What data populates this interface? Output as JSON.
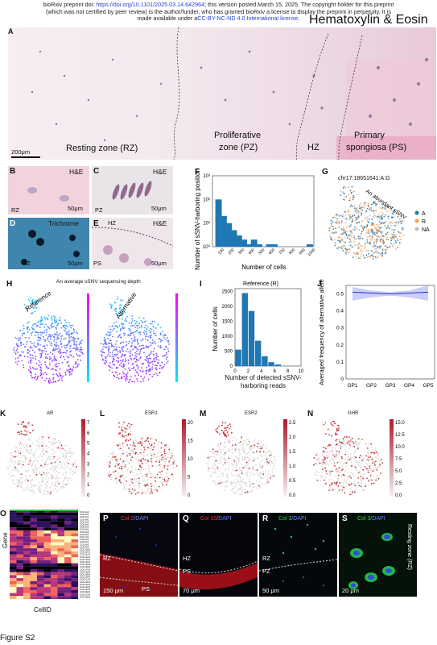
{
  "header": {
    "line1_pre": "bioRxiv preprint doi: ",
    "doi": "https://doi.org/10.1101/2025.03.14.642964",
    "line1_post": "; this version posted March 15, 2025. The copyright holder for this preprint",
    "line2": "(which was not certified by peer review) is the author/funder, who has granted bioRxiv a license to display the preprint in perpetuity. It is",
    "line3_pre": "made available under a",
    "license": "CC-BY-NC-ND 4.0 International license",
    "line3_post": "."
  },
  "panelA": {
    "letter": "A",
    "title": "Hematoxylin & Eosin",
    "scalebar": "200μm",
    "zones": [
      "Resting zone (RZ)",
      "Proliferative",
      "zone (PZ)",
      "HZ",
      "Primary",
      "spongiosa (PS)"
    ]
  },
  "panelB": {
    "letter": "B",
    "stain": "H&E",
    "zone": "RZ",
    "scalebar": "50μm"
  },
  "panelC": {
    "letter": "C",
    "stain": "H&E",
    "zone": "PZ",
    "scalebar": "50μm"
  },
  "panelD": {
    "letter": "D",
    "stain": "Trichrome",
    "zone": "RZ",
    "scalebar": "50μm"
  },
  "panelE": {
    "letter": "E",
    "stain": "H&E",
    "zone_top": "HZ",
    "zone_bottom": "PS",
    "scalebar": "50μm"
  },
  "panelF": {
    "letter": "F"
  },
  "panelG": {
    "letter": "G",
    "title": "chr17:18651641:A:G",
    "annotation": "An abundant sSNV",
    "legend": [
      {
        "label": "A",
        "color": "#1f77b4"
      },
      {
        "label": "R",
        "color": "#ff9f4a"
      },
      {
        "label": "NA",
        "color": "#bfbfbf"
      }
    ]
  },
  "panelH": {
    "letter": "H",
    "title": "An average sSNV sequencing depth",
    "left_label": "Reference",
    "right_label": "Alternative"
  },
  "panelI": {
    "letter": "I"
  },
  "panelJ": {
    "letter": "J"
  },
  "panelK": {
    "letter": "K",
    "gene": "AR",
    "ticks": [
      "7",
      "6",
      "5",
      "4",
      "3",
      "2",
      "1",
      "0"
    ]
  },
  "panelL": {
    "letter": "L",
    "gene": "ESR1",
    "ticks": [
      "20",
      "15",
      "10",
      "5",
      "0"
    ]
  },
  "panelM": {
    "letter": "M",
    "gene": "ESR2",
    "ticks": [
      "2.5",
      "2.0",
      "1.5",
      "1.0",
      "0.5",
      "0.0"
    ]
  },
  "panelN": {
    "letter": "N",
    "gene": "GHR",
    "ticks": [
      "15.0",
      "12.5",
      "10.0",
      "7.5",
      "5.0",
      "2.5",
      "0.0"
    ]
  },
  "panelO": {
    "letter": "O",
    "ylabel": "Gene",
    "xlabel": "CellID",
    "genes": [
      "COL1A2",
      "COL2A1",
      "COL3A1",
      "COL4A1",
      "COL4A2",
      "COL5A1",
      "COL5A2",
      "COL6A1",
      "COL6A2",
      "COL6A3",
      "COL7A1",
      "COL8A1",
      "COL9A1",
      "COL9A2",
      "COL9A3",
      "COL10A1",
      "COL11A1",
      "COL11A2",
      "COL12A1",
      "COL13A1",
      "COL14A1",
      "COL15A1",
      "COL16A1",
      "COL17A1",
      "COL18A1",
      "COL19A1",
      "COL20A1",
      "COL21A1",
      "COL22A1",
      "COL23A1",
      "COL24A1",
      "COL25A1",
      "COL26A1",
      "COL27A1",
      "COL28A1"
    ]
  },
  "panelP": {
    "letter": "P",
    "marker": "Col 2",
    "dapi": "/DAPI",
    "zone_top": "RZ",
    "zone_bottom": "PS",
    "scalebar": "150 μm"
  },
  "panelQ": {
    "letter": "Q",
    "marker": "Col 10",
    "dapi": "/DAPI",
    "zone_top": "HZ",
    "zone_bottom": "PS",
    "scalebar": "70 μm"
  },
  "panelR": {
    "letter": "R",
    "marker": "Col 3",
    "dapi": "/DAPI",
    "zone_top": "RZ",
    "zone_bottom": "PZ",
    "scalebar": "50 μm"
  },
  "panelS": {
    "letter": "S",
    "marker": "Col 3",
    "dapi": "/DAPI",
    "zone": "Resting zone (RZ)",
    "scalebar": "20 μm"
  },
  "figure_label": "Figure S2",
  "chart_data": [
    {
      "panel": "F",
      "type": "bar",
      "xlabel": "Number of cells",
      "ylabel": "Number of sSNV-harboring positions",
      "y_scale": "log",
      "ylim": [
        1,
        1000
      ],
      "ytick_labels": [
        "10³",
        "10²",
        "10¹",
        "10⁰"
      ],
      "xtick_labels": [
        "100",
        "200",
        "300",
        "400",
        "500",
        "600",
        "700",
        "800",
        "900",
        "1000"
      ],
      "x": [
        60,
        110,
        160,
        210,
        260,
        310,
        360,
        410,
        460,
        560,
        610,
        960
      ],
      "values": [
        100,
        20,
        10,
        5,
        3,
        2,
        1,
        2,
        1,
        1,
        1,
        1
      ]
    },
    {
      "panel": "I",
      "type": "bar",
      "title": "Reference (R)",
      "xlabel": "Number of detected sSNV-harboring reads",
      "ylabel": "Number of cells",
      "xlim": [
        0,
        10
      ],
      "ylim": [
        0,
        2600
      ],
      "xtick_labels": [
        "0",
        "2",
        "4",
        "6",
        "8",
        "10"
      ],
      "ytick_labels": [
        "0",
        "500",
        "1000",
        "1500",
        "2000",
        "2500"
      ],
      "x": [
        0.5,
        1.5,
        2.5,
        3.5,
        4.5,
        5.5,
        6.5
      ],
      "values": [
        550,
        2450,
        1850,
        850,
        330,
        130,
        50
      ]
    },
    {
      "panel": "J",
      "type": "line",
      "ylabel": "Averaged frequency of alternative allele",
      "categories": [
        "GP1",
        "GP2",
        "GP3",
        "GP4",
        "GP5"
      ],
      "ylim": [
        0,
        0.55
      ],
      "ytick_labels": [
        "0",
        "0.1",
        "0.2",
        "0.3",
        "0.4",
        "0.5"
      ],
      "values": [
        0.51,
        0.505,
        0.5,
        0.505,
        0.51
      ],
      "ci_low": [
        0.46,
        0.48,
        0.49,
        0.48,
        0.46
      ],
      "ci_high": [
        0.54,
        0.52,
        0.51,
        0.52,
        0.55
      ]
    }
  ]
}
